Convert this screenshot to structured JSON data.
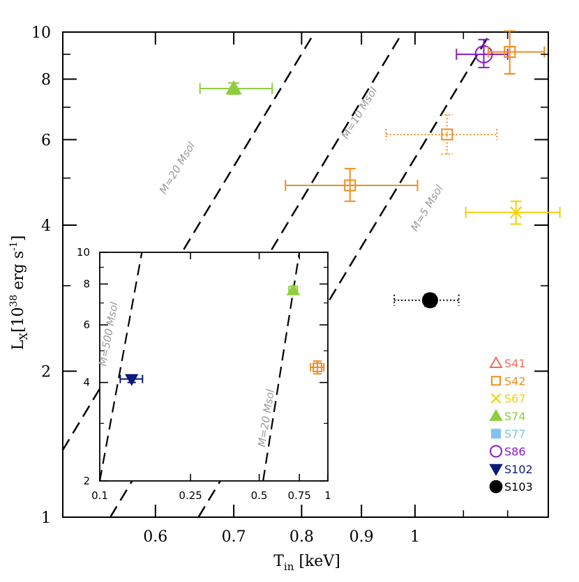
{
  "colors": {
    "S41": "#f26b5b",
    "S42": "#f28c1e",
    "S67": "#f5d000",
    "S74": "#8fcd3f",
    "S77": "#7ec4ef",
    "S86": "#8a19c7",
    "S102": "#0a1a7a",
    "S103": "#000000",
    "line": "#000000",
    "mass_label": "#9a9a9a"
  },
  "chart_data": [
    {
      "type": "scatter",
      "title": "",
      "xlabel": "T",
      "xlabel_sub": "in",
      "xlabel_unit": " [keV]",
      "ylabel": "L",
      "ylabel_sub": "X",
      "ylabel_unit": "[10",
      "ylabel_exp": "38",
      "ylabel_unit2": " erg s",
      "ylabel_exp2": "-1",
      "ylabel_close": "]",
      "xscale": "log",
      "yscale": "log",
      "xlim": [
        0.5,
        1.3
      ],
      "ylim": [
        1,
        10
      ],
      "xticks": [
        {
          "value": 0.6,
          "label": "0.6"
        },
        {
          "value": 0.7,
          "label": "0.7"
        },
        {
          "value": 0.8,
          "label": "0.8"
        },
        {
          "value": 0.9,
          "label": "0.9"
        },
        {
          "value": 1.0,
          "label": "1"
        }
      ],
      "xminor": [
        0.5,
        1.1,
        1.2,
        1.3
      ],
      "yticks": [
        {
          "value": 1,
          "label": "1"
        },
        {
          "value": 2,
          "label": "2"
        },
        {
          "value": 4,
          "label": "4"
        },
        {
          "value": 6,
          "label": "6"
        },
        {
          "value": 8,
          "label": "8"
        },
        {
          "value": 10,
          "label": "10"
        }
      ],
      "yminor": [
        3,
        5,
        7,
        9
      ],
      "mass_lines": [
        {
          "label": "M=20 Msol",
          "x_at_y1": 0.4617
        },
        {
          "label": "M=10 Msol",
          "x_at_y1": 0.549
        },
        {
          "label": "M=5 Msol",
          "x_at_y1": 0.653
        }
      ],
      "legend_placement": "bottom-right",
      "legend": [
        {
          "name": "S41",
          "marker": "triangle-open"
        },
        {
          "name": "S42",
          "marker": "square-open"
        },
        {
          "name": "S67",
          "marker": "x"
        },
        {
          "name": "S74",
          "marker": "triangle-filled"
        },
        {
          "name": "S77",
          "marker": "square-filled"
        },
        {
          "name": "S86",
          "marker": "circle-open"
        },
        {
          "name": "S102",
          "marker": "triangle-down-filled"
        },
        {
          "name": "S103",
          "marker": "circle-filled"
        }
      ],
      "points": [
        {
          "source": "S74",
          "marker": "triangle-filled",
          "x": 0.7,
          "y": 7.65,
          "xerr": [
            0.045,
            0.055
          ],
          "yerr": [
            0.2,
            0.2
          ],
          "dotted": false
        },
        {
          "source": "S42",
          "marker": "square-open",
          "x": 0.88,
          "y": 4.83,
          "xerr": [
            0.105,
            0.125
          ],
          "yerr": [
            0.35,
            0.4
          ],
          "dotted": false
        },
        {
          "source": "S42",
          "marker": "square-open",
          "x": 1.065,
          "y": 6.15,
          "xerr": [
            0.12,
            0.11
          ],
          "yerr": [
            0.55,
            0.6
          ],
          "dotted": true
        },
        {
          "source": "S86",
          "marker": "circle-open",
          "x": 1.145,
          "y": 9.0,
          "xerr": [
            0.06,
            0.055
          ],
          "yerr": [
            0.55,
            0.65
          ],
          "dotted": false
        },
        {
          "source": "S42",
          "marker": "square-open",
          "x": 1.205,
          "y": 9.1,
          "xerr": [
            0.05,
            0.085
          ],
          "yerr": [
            0.9,
            0.95
          ],
          "dotted": false
        },
        {
          "source": "S67",
          "marker": "x",
          "x": 1.22,
          "y": 4.25,
          "xerr": [
            0.115,
            0.11
          ],
          "yerr": [
            0.23,
            0.23
          ],
          "dotted": false
        },
        {
          "source": "S103",
          "marker": "circle-filled",
          "x": 1.03,
          "y": 2.8,
          "xerr": [
            0.07,
            0.06
          ],
          "yerr": [
            0.08,
            0.08
          ],
          "dotted": true
        }
      ]
    },
    {
      "type": "scatter",
      "title": "",
      "inset": true,
      "xscale": "log",
      "yscale": "log",
      "xlim": [
        0.1,
        1.0
      ],
      "ylim": [
        2,
        10
      ],
      "xticks": [
        {
          "value": 0.1,
          "label": "0.1"
        },
        {
          "value": 0.25,
          "label": "0.25"
        },
        {
          "value": 0.5,
          "label": "0.5"
        },
        {
          "value": 0.75,
          "label": "0.75"
        },
        {
          "value": 1.0,
          "label": "1"
        }
      ],
      "yticks": [
        {
          "value": 2,
          "label": "2"
        },
        {
          "value": 4,
          "label": "4"
        },
        {
          "value": 6,
          "label": "6"
        },
        {
          "value": 8,
          "label": "8"
        },
        {
          "value": 10,
          "label": "10"
        }
      ],
      "mass_lines": [
        {
          "label": "M=500 Msol",
          "x_at_y2": 0.1,
          "x_at_y10": 0.153
        },
        {
          "label": "M=20 Msol",
          "x_at_y2": 0.52,
          "x_at_y10": 0.75
        }
      ],
      "points": [
        {
          "source": "S102",
          "marker": "triangle-down-filled",
          "x": 0.138,
          "y": 4.1,
          "xerr": [
            0.015,
            0.016
          ],
          "yerr": [
            0.1,
            0.1
          ]
        },
        {
          "source": "S74",
          "marker": "triangle-filled",
          "x": 0.705,
          "y": 7.65,
          "xerr": [
            0.03,
            0.03
          ],
          "yerr": [
            0.22,
            0.22
          ]
        },
        {
          "source": "S42",
          "marker": "square-open",
          "x": 0.9,
          "y": 4.45,
          "xerr": [
            0.06,
            0.06
          ],
          "yerr": [
            0.2,
            0.2
          ]
        }
      ]
    }
  ]
}
